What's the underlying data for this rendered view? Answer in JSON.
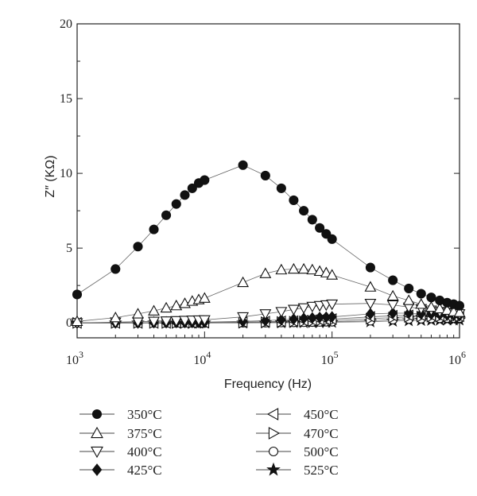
{
  "chart_data": {
    "type": "scatter",
    "title": "",
    "xlabel": "Frequency (Hz)",
    "ylabel": "Z″ (KΩ)",
    "x_scale": "log",
    "xlim": [
      1000,
      1000000
    ],
    "ylim": [
      -1,
      20
    ],
    "yticks": [
      0,
      5,
      10,
      15,
      20
    ],
    "xticks": [
      {
        "value": 1000,
        "base": "10",
        "exp": "3"
      },
      {
        "value": 10000,
        "base": "10",
        "exp": "4"
      },
      {
        "value": 100000,
        "base": "10",
        "exp": "5"
      },
      {
        "value": 1000000,
        "base": "10",
        "exp": "6"
      }
    ],
    "grid": false,
    "legend_position": "bottom",
    "x": [
      1000,
      2000,
      3000,
      4000,
      5000,
      6000,
      7000,
      8000,
      9000,
      10000,
      20000,
      30000,
      40000,
      50000,
      60000,
      70000,
      80000,
      90000,
      100000,
      200000,
      300000,
      400000,
      500000,
      600000,
      700000,
      800000,
      900000,
      1000000
    ],
    "series": [
      {
        "name": "350°C",
        "marker": "filled-circle",
        "values": [
          1.9,
          3.6,
          5.1,
          6.25,
          7.2,
          7.95,
          8.55,
          9.0,
          9.35,
          9.55,
          10.55,
          9.85,
          9.0,
          8.2,
          7.5,
          6.9,
          6.35,
          5.95,
          5.6,
          3.7,
          2.85,
          2.3,
          1.95,
          1.7,
          1.5,
          1.35,
          1.25,
          1.15
        ]
      },
      {
        "name": "375°C",
        "marker": "open-triangle-up",
        "values": [
          0.1,
          0.35,
          0.6,
          0.8,
          1.0,
          1.15,
          1.3,
          1.45,
          1.55,
          1.65,
          2.7,
          3.3,
          3.55,
          3.6,
          3.6,
          3.55,
          3.45,
          3.35,
          3.2,
          2.4,
          1.8,
          1.5,
          1.25,
          1.05,
          0.95,
          0.85,
          0.75,
          0.7
        ]
      },
      {
        "name": "400°C",
        "marker": "open-triangle-down",
        "values": [
          0.0,
          0.05,
          0.08,
          0.1,
          0.12,
          0.14,
          0.16,
          0.18,
          0.19,
          0.2,
          0.4,
          0.6,
          0.75,
          0.9,
          1.0,
          1.1,
          1.15,
          1.2,
          1.25,
          1.3,
          1.2,
          1.05,
          0.95,
          0.85,
          0.75,
          0.7,
          0.65,
          0.6
        ]
      },
      {
        "name": "425°C",
        "marker": "filled-diamond",
        "values": [
          0.0,
          0.0,
          0.0,
          0.02,
          0.02,
          0.03,
          0.03,
          0.04,
          0.04,
          0.05,
          0.1,
          0.15,
          0.2,
          0.25,
          0.3,
          0.33,
          0.36,
          0.38,
          0.4,
          0.6,
          0.65,
          0.65,
          0.6,
          0.58,
          0.55,
          0.52,
          0.5,
          0.48
        ]
      },
      {
        "name": "450°C",
        "marker": "open-triangle-left",
        "values": [
          0.0,
          0.0,
          0.0,
          0.0,
          0.0,
          0.01,
          0.01,
          0.01,
          0.02,
          0.02,
          0.05,
          0.08,
          0.1,
          0.12,
          0.15,
          0.18,
          0.2,
          0.22,
          0.25,
          0.4,
          0.48,
          0.5,
          0.5,
          0.5,
          0.48,
          0.47,
          0.45,
          0.44
        ]
      },
      {
        "name": "470°C",
        "marker": "open-triangle-right",
        "values": [
          0.0,
          0.0,
          0.0,
          0.0,
          0.0,
          0.0,
          0.0,
          0.0,
          0.01,
          0.01,
          0.02,
          0.04,
          0.06,
          0.08,
          0.1,
          0.12,
          0.13,
          0.14,
          0.15,
          0.28,
          0.35,
          0.4,
          0.42,
          0.42,
          0.42,
          0.41,
          0.4,
          0.4
        ]
      },
      {
        "name": "500°C",
        "marker": "open-circle",
        "values": [
          0.0,
          0.0,
          0.0,
          0.0,
          0.0,
          0.0,
          0.0,
          0.0,
          0.0,
          0.0,
          0.01,
          0.02,
          0.03,
          0.04,
          0.05,
          0.06,
          0.07,
          0.08,
          0.08,
          0.15,
          0.22,
          0.26,
          0.28,
          0.3,
          0.31,
          0.32,
          0.32,
          0.32
        ]
      },
      {
        "name": "525°C",
        "marker": "filled-star",
        "values": [
          0.0,
          0.0,
          0.0,
          0.0,
          0.0,
          0.0,
          0.0,
          0.0,
          0.0,
          0.0,
          0.0,
          0.01,
          0.01,
          0.02,
          0.02,
          0.03,
          0.03,
          0.04,
          0.04,
          0.08,
          0.12,
          0.15,
          0.17,
          0.18,
          0.19,
          0.2,
          0.2,
          0.2
        ]
      }
    ],
    "colors": {
      "marker": "#111111",
      "line": "#666666",
      "axis": "#222222"
    }
  }
}
